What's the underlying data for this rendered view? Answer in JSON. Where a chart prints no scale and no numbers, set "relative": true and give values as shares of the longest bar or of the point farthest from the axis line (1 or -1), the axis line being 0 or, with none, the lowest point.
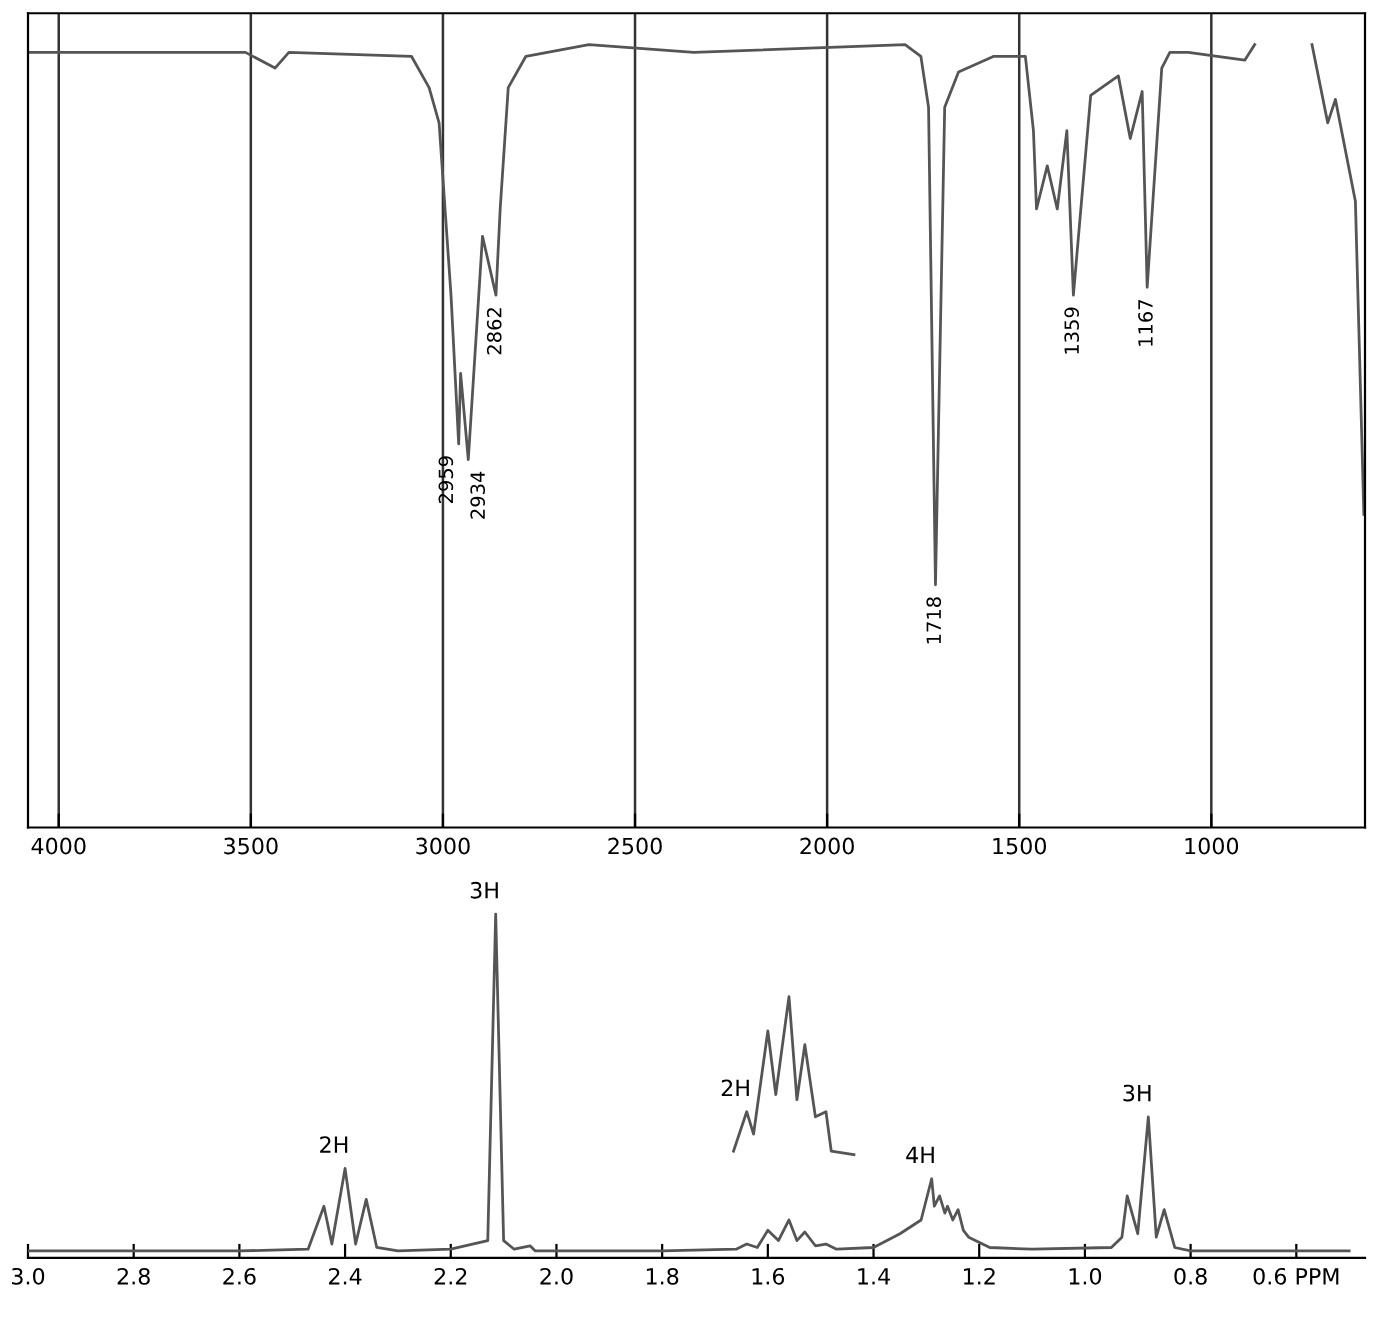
{
  "chart_data": [
    {
      "type": "line",
      "relative": true,
      "xlim": [
        4080,
        600
      ],
      "xticks": [
        4000,
        3500,
        3000,
        2500,
        2000,
        1500,
        1000
      ],
      "tick_labels": "x",
      "grid": "x",
      "series": [
        {
          "color": "#555555",
          "x": [
            4080,
            3514,
            3437,
            3401,
            3082,
            3036,
            3010,
            2979,
            2959,
            2954,
            2934,
            2897,
            2862,
            2851,
            2830,
            2784,
            2620,
            2347,
            1797,
            1756,
            1736,
            1718,
            1694,
            1658,
            1566,
            1484,
            1463,
            1455,
            1427,
            1401,
            1376,
            1359,
            1314,
            1242,
            1211,
            1180,
            1167,
            1129,
            1108,
            1060,
            913,
            887,
            800,
            738,
            697,
            677,
            625,
            603
          ],
          "values": [
            0.99,
            0.99,
            0.97,
            0.99,
            0.985,
            0.945,
            0.9,
            0.68,
            0.49,
            0.58,
            0.47,
            0.755,
            0.68,
            0.79,
            0.945,
            0.985,
            1.0,
            0.99,
            1.0,
            0.985,
            0.92,
            0.31,
            0.92,
            0.965,
            0.985,
            0.985,
            0.89,
            0.79,
            0.845,
            0.79,
            0.89,
            0.68,
            0.935,
            0.96,
            0.88,
            0.94,
            0.69,
            0.97,
            0.99,
            0.99,
            0.98,
            1.0,
            null,
            1.0,
            0.9,
            0.93,
            0.8,
            0.4
          ]
        }
      ],
      "annotations": [
        {
          "text": "2959",
          "x": 2959,
          "y": 0.49
        },
        {
          "text": "2934",
          "x": 2934,
          "y": 0.47
        },
        {
          "text": "2862",
          "x": 2862,
          "y": 0.68
        },
        {
          "text": "1718",
          "x": 1718,
          "y": 0.31
        },
        {
          "text": "1359",
          "x": 1359,
          "y": 0.68
        },
        {
          "text": "1167",
          "x": 1167,
          "y": 0.69
        }
      ]
    },
    {
      "type": "line",
      "relative": true,
      "xlim": [
        3.0,
        0.47
      ],
      "xticks": [
        {
          "value": 3.0,
          "label": "3.0"
        },
        2.8,
        2.6,
        2.4,
        2.2,
        {
          "value": 2.0,
          "label": "2.0"
        },
        1.8,
        1.6,
        1.4,
        1.2,
        {
          "value": 1.0,
          "label": "1.0"
        },
        0.8,
        {
          "value": 0.6,
          "label": "0.6 PPM"
        }
      ],
      "tick_labels": "x",
      "series": [
        {
          "color": "#555555",
          "x": [
            3.0,
            2.6,
            2.47,
            2.44,
            2.425,
            2.4,
            2.38,
            2.36,
            2.34,
            2.3,
            2.2,
            2.13,
            2.115,
            2.1,
            2.08,
            2.05,
            2.04,
            1.8,
            1.66,
            1.64,
            1.62,
            1.6,
            1.58,
            1.56,
            1.545,
            1.53,
            1.51,
            1.49,
            1.47,
            1.4,
            1.35,
            1.31,
            1.29,
            1.285,
            1.275,
            1.265,
            1.26,
            1.25,
            1.24,
            1.23,
            1.22,
            1.18,
            1.1,
            0.95,
            0.93,
            0.92,
            0.9,
            0.88,
            0.865,
            0.85,
            0.83,
            0.8,
            0.5
          ],
          "values": [
            0.02,
            0.02,
            0.025,
            0.15,
            0.04,
            0.26,
            0.04,
            0.17,
            0.03,
            0.02,
            0.025,
            0.05,
            1.0,
            0.05,
            0.025,
            0.035,
            0.02,
            0.02,
            0.025,
            0.04,
            0.03,
            0.08,
            0.05,
            0.11,
            0.05,
            0.075,
            0.035,
            0.04,
            0.025,
            0.03,
            0.07,
            0.11,
            0.23,
            0.15,
            0.18,
            0.13,
            0.15,
            0.11,
            0.14,
            0.08,
            0.06,
            0.03,
            0.025,
            0.03,
            0.06,
            0.18,
            0.07,
            0.41,
            0.06,
            0.14,
            0.03,
            0.02,
            0.02
          ]
        },
        {
          "color": "#555555",
          "x": [
            1.665,
            1.64,
            1.627,
            1.6,
            1.585,
            1.56,
            1.545,
            1.53,
            1.51,
            1.49,
            1.48,
            1.437
          ],
          "values": [
            0.31,
            0.425,
            0.36,
            0.66,
            0.475,
            0.76,
            0.46,
            0.62,
            0.41,
            0.425,
            0.31,
            0.3
          ]
        }
      ],
      "annotations": [
        {
          "text": "2H",
          "x": 2.4,
          "y": 0.26
        },
        {
          "text": "3H",
          "x": 2.115,
          "y": 1.0
        },
        {
          "text": "2H",
          "x": 1.64,
          "y": 0.425
        },
        {
          "text": "4H",
          "x": 1.29,
          "y": 0.23
        },
        {
          "text": "3H",
          "x": 0.88,
          "y": 0.41
        }
      ]
    }
  ]
}
